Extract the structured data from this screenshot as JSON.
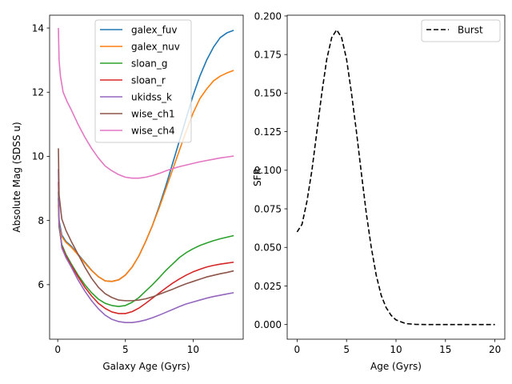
{
  "chart_data": [
    {
      "type": "line",
      "xlabel": "Galaxy Age (Gyrs)",
      "ylabel": "Absolute Mag (SDSS u)",
      "xlim": [
        -0.6,
        13.7
      ],
      "ylim": [
        4.3,
        14.4
      ],
      "xticks": [
        0,
        5,
        10
      ],
      "yticks": [
        6,
        8,
        10,
        12,
        14
      ],
      "grid": false,
      "legend_position": "top-right",
      "series": [
        {
          "name": "galex_fuv",
          "color": "#1f77b4",
          "x": [
            0.05,
            0.1,
            0.3,
            0.6,
            1,
            1.5,
            2,
            2.5,
            3,
            3.5,
            4,
            4.5,
            5,
            5.5,
            6,
            6.5,
            7,
            7.5,
            8,
            8.5,
            9,
            9.5,
            10,
            10.5,
            11,
            11.5,
            12,
            12.5,
            13
          ],
          "y": [
            8.7,
            8.0,
            7.55,
            7.35,
            7.2,
            6.95,
            6.7,
            6.45,
            6.25,
            6.12,
            6.1,
            6.15,
            6.3,
            6.55,
            6.9,
            7.35,
            7.85,
            8.45,
            9.1,
            9.8,
            10.5,
            11.2,
            11.9,
            12.5,
            13.0,
            13.4,
            13.7,
            13.85,
            13.93
          ]
        },
        {
          "name": "galex_nuv",
          "color": "#ff7f0e",
          "x": [
            0.05,
            0.1,
            0.3,
            0.6,
            1,
            1.5,
            2,
            2.5,
            3,
            3.5,
            4,
            4.5,
            5,
            5.5,
            6,
            6.5,
            7,
            7.5,
            8,
            8.5,
            9,
            9.5,
            10,
            10.5,
            11,
            11.5,
            12,
            12.5,
            13
          ],
          "y": [
            8.5,
            7.9,
            7.5,
            7.32,
            7.17,
            6.93,
            6.68,
            6.44,
            6.25,
            6.12,
            6.1,
            6.15,
            6.3,
            6.55,
            6.9,
            7.35,
            7.85,
            8.4,
            9.0,
            9.6,
            10.2,
            10.8,
            11.35,
            11.8,
            12.1,
            12.35,
            12.5,
            12.6,
            12.68
          ]
        },
        {
          "name": "sloan_g",
          "color": "#2ca02c",
          "x": [
            0.05,
            0.1,
            0.3,
            0.6,
            1,
            1.5,
            2,
            2.5,
            3,
            3.5,
            4,
            4.5,
            5,
            5.5,
            6,
            6.5,
            7,
            7.5,
            8,
            8.5,
            9,
            9.5,
            10,
            10.5,
            11,
            11.5,
            12,
            12.5,
            13
          ],
          "y": [
            8.9,
            7.8,
            7.25,
            6.95,
            6.65,
            6.3,
            6.0,
            5.75,
            5.55,
            5.42,
            5.35,
            5.32,
            5.35,
            5.45,
            5.6,
            5.8,
            6.0,
            6.22,
            6.45,
            6.65,
            6.85,
            7.0,
            7.12,
            7.22,
            7.3,
            7.37,
            7.43,
            7.48,
            7.53
          ]
        },
        {
          "name": "sloan_r",
          "color": "#d62728",
          "x": [
            0.05,
            0.1,
            0.3,
            0.6,
            1,
            1.5,
            2,
            2.5,
            3,
            3.5,
            4,
            4.5,
            5,
            5.5,
            6,
            6.5,
            7,
            7.5,
            8,
            8.5,
            9,
            9.5,
            10,
            10.5,
            11,
            11.5,
            12,
            12.5,
            13
          ],
          "y": [
            9.2,
            7.9,
            7.2,
            6.9,
            6.6,
            6.25,
            5.92,
            5.65,
            5.42,
            5.26,
            5.15,
            5.1,
            5.1,
            5.16,
            5.27,
            5.42,
            5.58,
            5.74,
            5.9,
            6.05,
            6.18,
            6.3,
            6.4,
            6.48,
            6.55,
            6.6,
            6.64,
            6.67,
            6.7
          ]
        },
        {
          "name": "ukidss_k",
          "color": "#9467bd",
          "x": [
            0.05,
            0.1,
            0.3,
            0.6,
            1,
            1.5,
            2,
            2.5,
            3,
            3.5,
            4,
            4.5,
            5,
            5.5,
            6,
            6.5,
            7,
            7.5,
            8,
            8.5,
            9,
            9.5,
            10,
            10.5,
            11,
            11.5,
            12,
            12.5,
            13
          ],
          "y": [
            9.6,
            8.0,
            7.15,
            6.85,
            6.55,
            6.15,
            5.8,
            5.5,
            5.25,
            5.05,
            4.92,
            4.85,
            4.82,
            4.82,
            4.85,
            4.9,
            4.97,
            5.05,
            5.14,
            5.23,
            5.32,
            5.4,
            5.46,
            5.52,
            5.58,
            5.63,
            5.67,
            5.71,
            5.75
          ]
        },
        {
          "name": "wise_ch1",
          "color": "#8c564b",
          "x": [
            0.05,
            0.1,
            0.3,
            0.6,
            1,
            1.5,
            2,
            2.5,
            3,
            3.5,
            4,
            4.5,
            5,
            5.5,
            6,
            6.5,
            7,
            7.5,
            8,
            8.5,
            9,
            9.5,
            10,
            10.5,
            11,
            11.5,
            12,
            12.5,
            13
          ],
          "y": [
            10.25,
            8.8,
            8.05,
            7.7,
            7.35,
            6.95,
            6.55,
            6.2,
            5.92,
            5.72,
            5.6,
            5.52,
            5.5,
            5.5,
            5.52,
            5.56,
            5.62,
            5.7,
            5.78,
            5.86,
            5.95,
            6.03,
            6.1,
            6.17,
            6.24,
            6.29,
            6.34,
            6.38,
            6.43
          ]
        },
        {
          "name": "wise_ch4",
          "color": "#e377c2",
          "x": [
            0.05,
            0.1,
            0.2,
            0.4,
            0.7,
            1,
            1.5,
            2,
            2.5,
            3,
            3.5,
            4,
            4.5,
            5,
            5.5,
            6,
            6.5,
            7,
            7.5,
            8,
            8.5,
            9,
            9.5,
            10,
            10.5,
            11,
            11.5,
            12,
            12.5,
            13
          ],
          "y": [
            14.0,
            13.0,
            12.5,
            12.0,
            11.7,
            11.45,
            11.0,
            10.6,
            10.25,
            9.95,
            9.7,
            9.55,
            9.43,
            9.35,
            9.32,
            9.32,
            9.35,
            9.4,
            9.47,
            9.55,
            9.62,
            9.68,
            9.73,
            9.78,
            9.83,
            9.87,
            9.91,
            9.95,
            9.98,
            10.01
          ]
        }
      ]
    },
    {
      "type": "line",
      "xlabel": "Age (Gyrs)",
      "ylabel": "SFR",
      "xlim": [
        -1,
        21
      ],
      "ylim": [
        -0.0095,
        0.2005
      ],
      "xticks": [
        0,
        5,
        10,
        15,
        20
      ],
      "yticks": [
        0.0,
        0.025,
        0.05,
        0.075,
        0.1,
        0.125,
        0.15,
        0.175,
        0.2
      ],
      "yticklabels": [
        "0.000",
        "0.025",
        "0.050",
        "0.075",
        "0.100",
        "0.125",
        "0.150",
        "0.175",
        "0.200"
      ],
      "grid": false,
      "legend_position": "top-right",
      "series": [
        {
          "name": "Burst",
          "color": "#000000",
          "dash": "dashed",
          "x": [
            0,
            0.5,
            1,
            1.5,
            2,
            2.5,
            3,
            3.5,
            4,
            4.5,
            5,
            5.5,
            6,
            6.5,
            7,
            7.5,
            8,
            8.5,
            9,
            9.5,
            10,
            11,
            12,
            13,
            14,
            15,
            16,
            17,
            18,
            19,
            20
          ],
          "y": [
            0.06,
            0.065,
            0.08,
            0.1,
            0.125,
            0.15,
            0.172,
            0.186,
            0.191,
            0.186,
            0.172,
            0.15,
            0.125,
            0.098,
            0.072,
            0.05,
            0.032,
            0.019,
            0.011,
            0.006,
            0.003,
            0.0006,
            0.0001,
            0.0,
            0.0,
            0.0,
            0.0,
            0.0,
            0.0,
            0.0,
            0.0
          ]
        }
      ]
    }
  ]
}
